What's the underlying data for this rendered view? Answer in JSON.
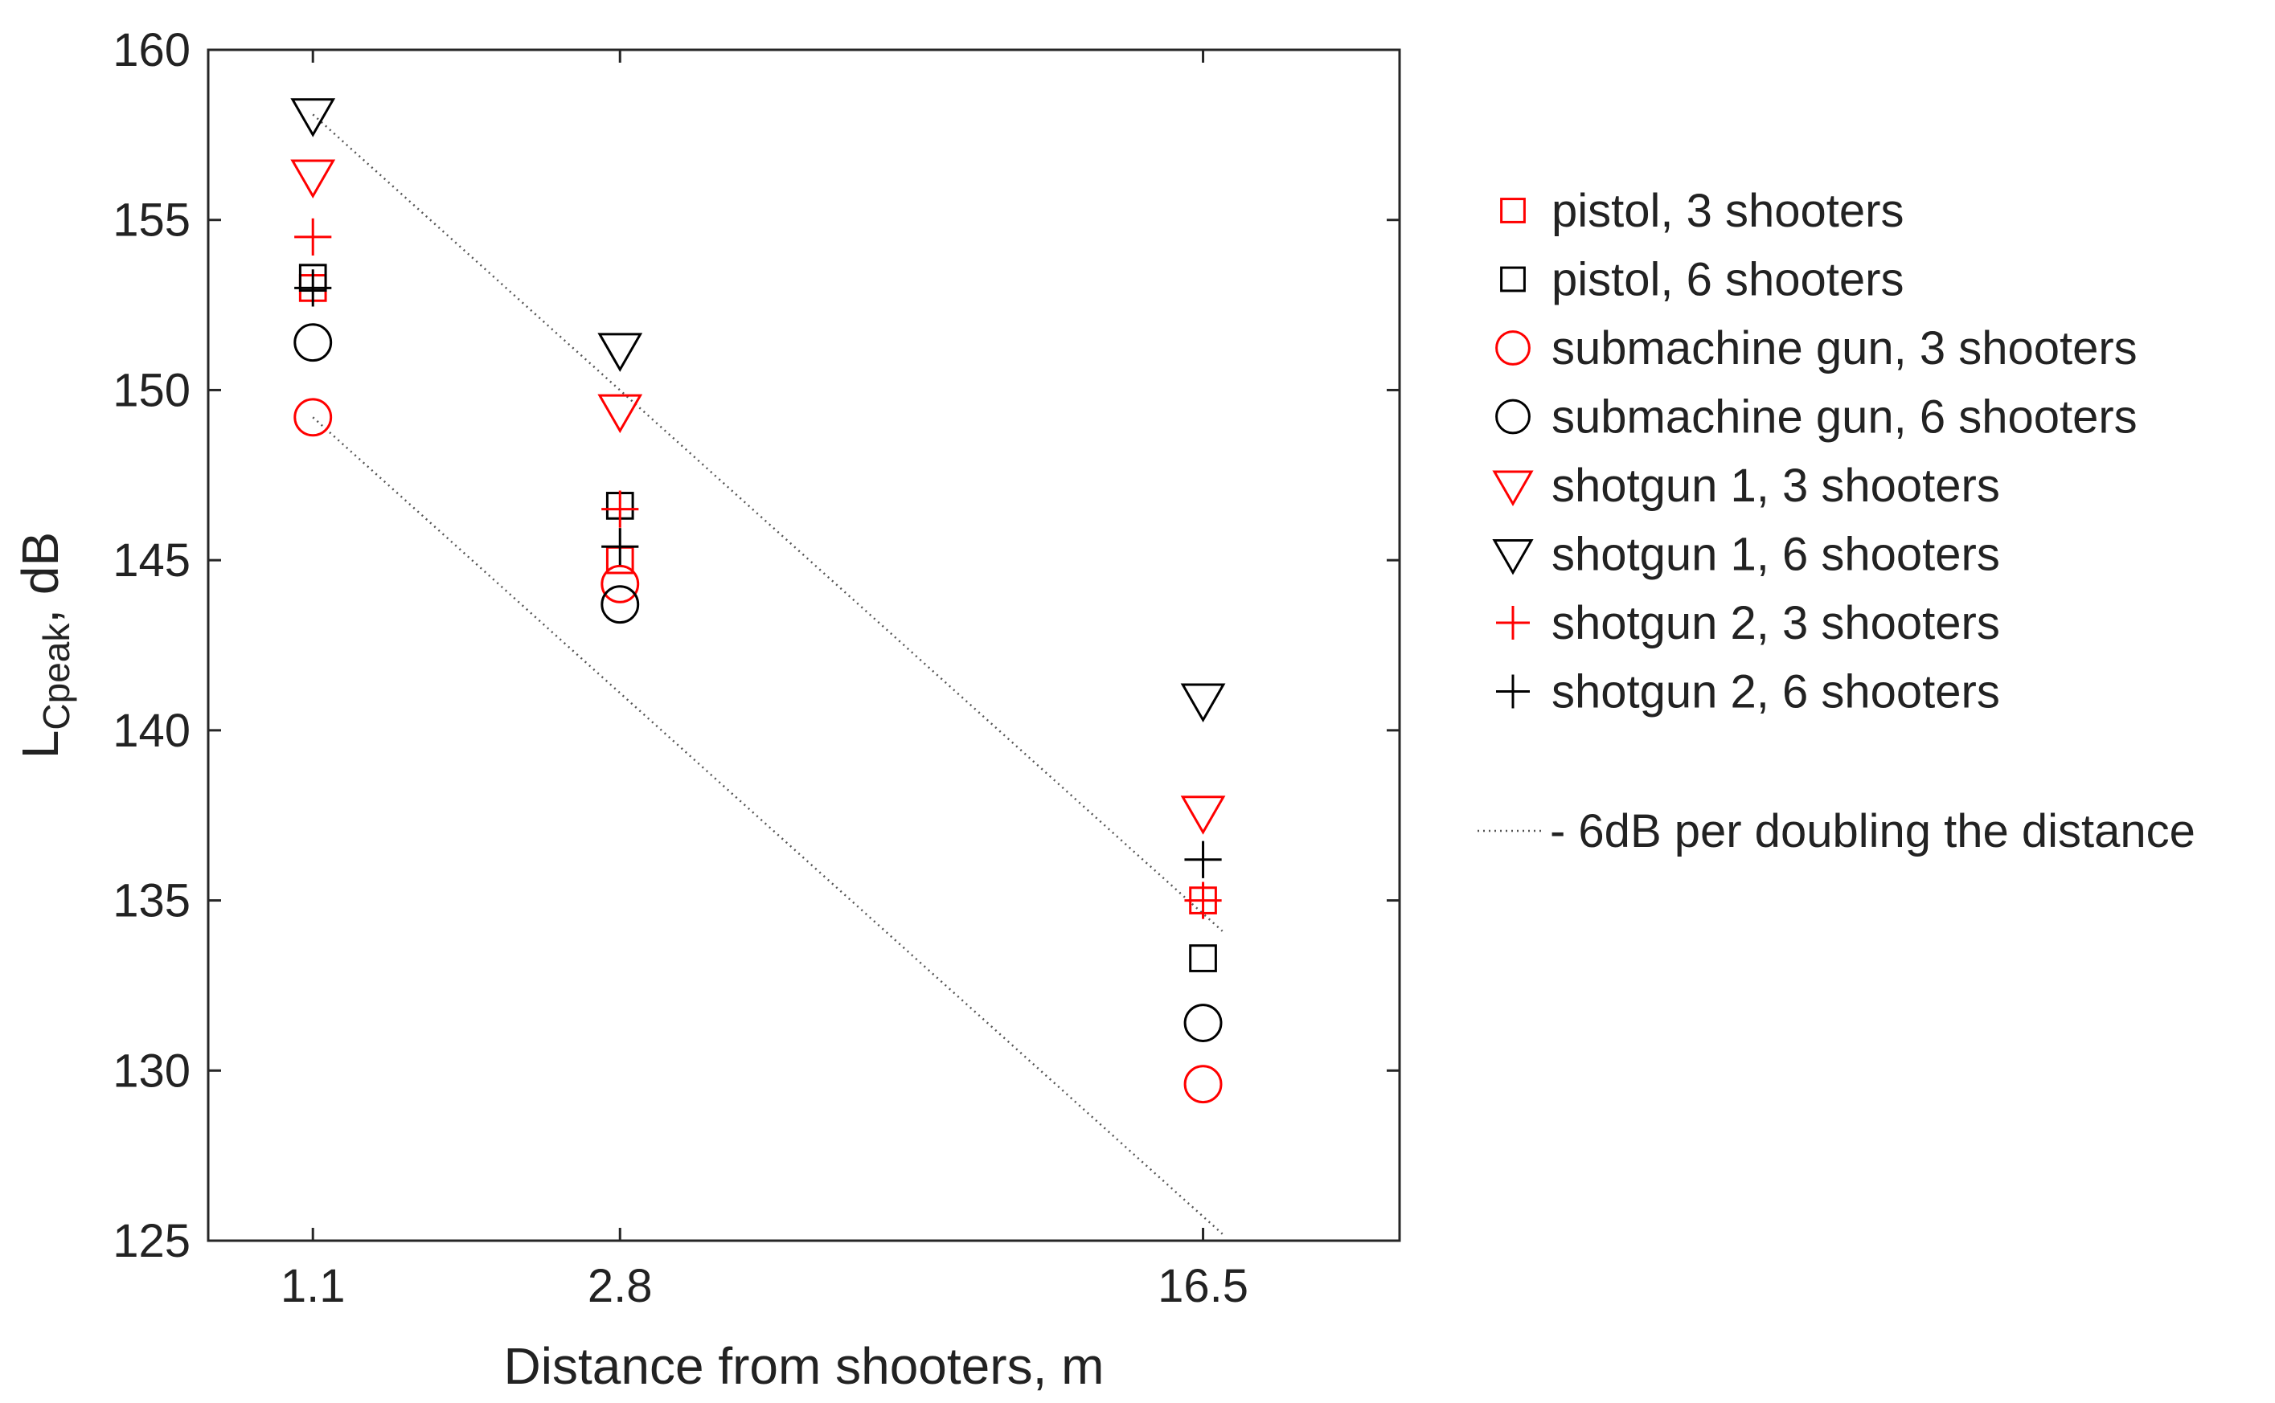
{
  "chart_data": {
    "type": "scatter",
    "xlabel": "Distance from shooters, m",
    "ylabel": {
      "base": "L",
      "subscript": "Cpeak",
      "suffix": ", dB"
    },
    "x_categories": [
      "1.1",
      "2.8",
      "16.5"
    ],
    "x_scale": "log",
    "xlim": [
      0.8,
      30
    ],
    "ylim": [
      125,
      160
    ],
    "yticks": [
      125,
      130,
      135,
      140,
      145,
      150,
      155,
      160
    ],
    "grid": false,
    "legend_position": "right",
    "series": [
      {
        "name": "pistol, 3 shooters",
        "marker": "square",
        "color": "#ff0000",
        "values": [
          153.0,
          145.0,
          135.0
        ]
      },
      {
        "name": "pistol, 6 shooters",
        "marker": "square",
        "color": "#000000",
        "values": [
          153.3,
          146.6,
          133.3
        ]
      },
      {
        "name": "submachine gun, 3 shooters",
        "marker": "circle",
        "color": "#ff0000",
        "values": [
          149.2,
          144.3,
          129.6
        ]
      },
      {
        "name": "submachine gun, 6 shooters",
        "marker": "circle",
        "color": "#000000",
        "values": [
          151.4,
          143.7,
          131.4
        ]
      },
      {
        "name": "shotgun 1, 3 shooters",
        "marker": "triangle-down",
        "color": "#ff0000",
        "values": [
          156.3,
          149.4,
          137.6
        ]
      },
      {
        "name": "shotgun 1, 6 shooters",
        "marker": "triangle-down",
        "color": "#000000",
        "values": [
          158.1,
          151.2,
          140.9
        ]
      },
      {
        "name": "shotgun 2, 3 shooters",
        "marker": "plus",
        "color": "#ff0000",
        "values": [
          154.5,
          146.5,
          135.0
        ]
      },
      {
        "name": "shotgun 2, 6 shooters",
        "marker": "plus",
        "color": "#000000",
        "values": [
          153.0,
          145.4,
          136.2
        ]
      }
    ],
    "reference_lines": {
      "name": "- 6dB per doubling the distance",
      "color": "#555555",
      "style": "dotted",
      "lines": [
        {
          "x": [
            1.1,
            17.5
          ],
          "y": [
            158.1,
            134.1
          ]
        },
        {
          "x": [
            1.1,
            17.5
          ],
          "y": [
            149.2,
            125.2
          ]
        }
      ]
    }
  }
}
